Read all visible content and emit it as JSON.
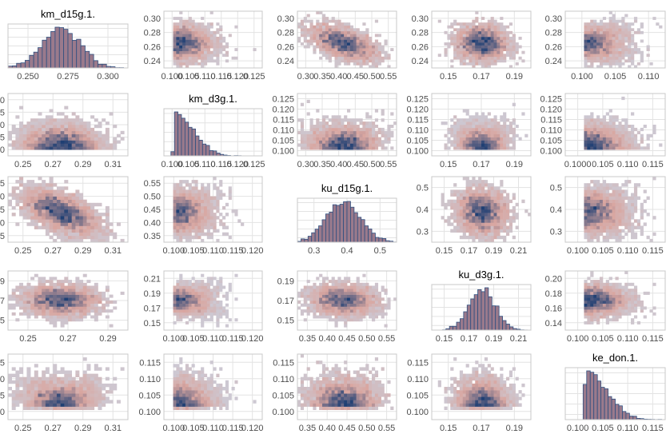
{
  "colors": {
    "panel_border": "#c8c8c8",
    "grid": "#e3e3e3",
    "hist_fill": "#9a7a8c",
    "hist_stroke": "#2f4f7f",
    "density_low": "#c9d3e2",
    "density_mid": "#d9a6a0",
    "density_high": "#1f3f73"
  },
  "chart_data": {
    "type": "pairs-matrix",
    "variables": [
      "km_d15g.1.",
      "km_d3g.1.",
      "ku_d15g.1.",
      "ku_d3g.1.",
      "ke_don.1."
    ],
    "ranges": [
      [
        0.235,
        0.31
      ],
      [
        0.098,
        0.127
      ],
      [
        0.3,
        0.56
      ],
      [
        0.13,
        0.215
      ],
      [
        0.098,
        0.119
      ]
    ],
    "modes": [
      0.268,
      0.101,
      0.42,
      0.173,
      0.102
    ],
    "spreads": [
      0.012,
      0.005,
      0.045,
      0.011,
      0.004
    ],
    "skews": [
      0,
      1,
      0,
      0,
      1
    ],
    "correlations": [
      [
        1,
        0.05,
        -0.55,
        -0.05,
        0.5
      ],
      [
        0.05,
        1,
        -0.35,
        -0.45,
        0.1
      ],
      [
        -0.55,
        -0.35,
        1,
        -0.1,
        -0.3
      ],
      [
        -0.05,
        -0.45,
        -0.1,
        1,
        0.05
      ],
      [
        0.5,
        0.1,
        -0.3,
        0.05,
        1
      ]
    ],
    "x_ticks": [
      [
        "0.250",
        "0.275",
        "0.300"
      ],
      [
        "0.100",
        "0.105",
        "0.110",
        "0.115",
        "0.120",
        "0.125"
      ],
      [
        "0.30",
        "0.35",
        "0.40",
        "0.45",
        "0.50",
        "0.55"
      ],
      [
        "0.15",
        "0.17",
        "0.19"
      ],
      [
        "0.100",
        "0.105",
        "0.110"
      ]
    ],
    "panels": [
      {
        "x_ticks": [
          "0.250",
          "0.275",
          "0.300"
        ],
        "y_ticks": []
      },
      {
        "x_ticks": [
          "0.100",
          "0.105",
          "0.110",
          "0.115",
          "0.120",
          "0.125"
        ],
        "y_ticks": [
          "0.30",
          "0.28",
          "0.26",
          "0.24"
        ]
      },
      {
        "x_ticks": [
          "0.30",
          "0.35",
          "0.40",
          "0.45",
          "0.50",
          "0.55"
        ],
        "y_ticks": [
          "0.30",
          "0.28",
          "0.26",
          "0.24"
        ]
      },
      {
        "x_ticks": [
          "0.15",
          "0.17",
          "0.19"
        ],
        "y_ticks": [
          "0.30",
          "0.28",
          "0.26",
          "0.24"
        ]
      },
      {
        "x_ticks": [
          "0.100",
          "0.105",
          "0.110"
        ],
        "y_ticks": [
          "0.30",
          "0.28",
          "0.26",
          "0.24"
        ]
      },
      {
        "x_ticks": [
          "0.25",
          "0.27",
          "0.29",
          "0.31"
        ],
        "y_ticks": [
          "0.120",
          "0.115",
          "0.110",
          "0.105",
          "0.100"
        ]
      },
      {
        "x_ticks": [
          "0.100",
          "0.105",
          "0.110",
          "0.115",
          "0.120",
          "0.125"
        ],
        "y_ticks": []
      },
      {
        "x_ticks": [
          "0.30",
          "0.35",
          "0.40",
          "0.45",
          "0.50",
          "0.55"
        ],
        "y_ticks": [
          "0.125",
          "0.120",
          "0.115",
          "0.110",
          "0.105",
          "0.100"
        ]
      },
      {
        "x_ticks": [
          "0.15",
          "0.17",
          "0.19"
        ],
        "y_ticks": [
          "0.125",
          "0.120",
          "0.115",
          "0.110",
          "0.105",
          "0.100"
        ]
      },
      {
        "x_ticks": [
          "0.1000",
          "0.105",
          "0.110",
          "0.115"
        ],
        "y_ticks": [
          "0.125",
          "0.120",
          "0.115",
          "0.110",
          "0.105",
          "0.100"
        ]
      },
      {
        "x_ticks": [
          "0.25",
          "0.27",
          "0.29",
          "0.31"
        ],
        "y_ticks": [
          "0.55",
          "0.50",
          "0.45",
          "0.40",
          "0.35"
        ]
      },
      {
        "x_ticks": [
          "0.100",
          "0.105",
          "0.110",
          "0.115",
          "0.120"
        ],
        "y_ticks": [
          "0.55",
          "0.50",
          "0.45",
          "0.40",
          "0.35"
        ]
      },
      {
        "x_ticks": [
          "0.3",
          "0.4",
          "0.5"
        ],
        "y_ticks": []
      },
      {
        "x_ticks": [
          "0.15",
          "0.17",
          "0.19",
          "0.21"
        ],
        "y_ticks": [
          "0.5",
          "0.4",
          "0.3"
        ]
      },
      {
        "x_ticks": [
          "0.100",
          "0.105",
          "0.110",
          "0.115"
        ],
        "y_ticks": [
          "0.5",
          "0.4",
          "0.3"
        ]
      },
      {
        "x_ticks": [
          "0.25",
          "0.27",
          "0.29"
        ],
        "y_ticks": [
          "0.19",
          "0.17",
          "0.15"
        ]
      },
      {
        "x_ticks": [
          "0.100",
          "0.105",
          "0.110",
          "0.115",
          "0.120"
        ],
        "y_ticks": [
          "0.21",
          "0.19",
          "0.17",
          "0.15"
        ]
      },
      {
        "x_ticks": [
          "0.35",
          "0.40",
          "0.45",
          "0.50",
          "0.55"
        ],
        "y_ticks": [
          "0.19",
          "0.17",
          "0.15"
        ]
      },
      {
        "x_ticks": [
          "0.15",
          "0.17",
          "0.19",
          "0.21"
        ],
        "y_ticks": []
      },
      {
        "x_ticks": [
          "0.100",
          "0.105",
          "0.110",
          "0.115"
        ],
        "y_ticks": [
          "0.20",
          "0.18",
          "0.16",
          "0.14"
        ]
      },
      {
        "x_ticks": [
          "0.25",
          "0.27",
          "0.29",
          "0.31"
        ],
        "y_ticks": [
          "0.115",
          "0.110",
          "0.105",
          "0.100"
        ]
      },
      {
        "x_ticks": [
          "0.100",
          "0.105",
          "0.110",
          "0.115",
          "0.120"
        ],
        "y_ticks": [
          "0.115",
          "0.110",
          "0.105",
          "0.100"
        ]
      },
      {
        "x_ticks": [
          "0.35",
          "0.40",
          "0.45",
          "0.50",
          "0.55"
        ],
        "y_ticks": [
          "0.115",
          "0.110",
          "0.105",
          "0.100"
        ]
      },
      {
        "x_ticks": [
          "0.15",
          "0.17",
          "0.19"
        ],
        "y_ticks": [
          "0.115",
          "0.110",
          "0.105",
          "0.100"
        ]
      },
      {
        "x_ticks": [
          "0.100",
          "0.105",
          "0.110",
          "0.115"
        ],
        "y_ticks": []
      }
    ]
  }
}
